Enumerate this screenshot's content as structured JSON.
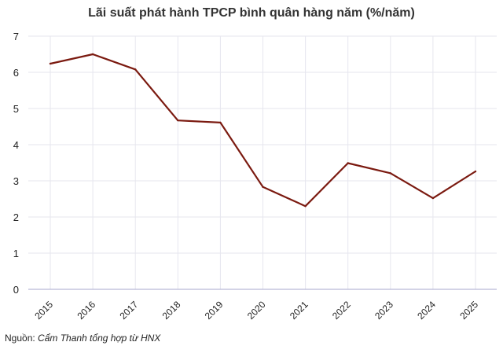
{
  "chart_data": {
    "type": "line",
    "title": "Lãi suất phát hành TPCP bình quân hàng năm (%/năm)",
    "xlabel": "",
    "ylabel": "",
    "categories": [
      "2015",
      "2016",
      "2017",
      "2018",
      "2019",
      "2020",
      "2021",
      "2022",
      "2023",
      "2024",
      "2025"
    ],
    "series": [
      {
        "values": [
          6.24,
          6.5,
          6.08,
          4.67,
          4.61,
          2.83,
          2.3,
          3.49,
          3.21,
          2.52,
          3.26
        ]
      }
    ],
    "ylim": [
      0,
      7
    ],
    "yticks": [
      "0",
      "1",
      "2",
      "3",
      "4",
      "5",
      "6",
      "7"
    ],
    "grid": true,
    "legend": "none",
    "colors": {
      "line": "#7b1a10",
      "grid": "#e6e6ee",
      "axis": "#b9b9d8"
    }
  },
  "source": {
    "label": "Nguồn: ",
    "text": "Cẩm Thanh tổng hợp từ HNX"
  }
}
